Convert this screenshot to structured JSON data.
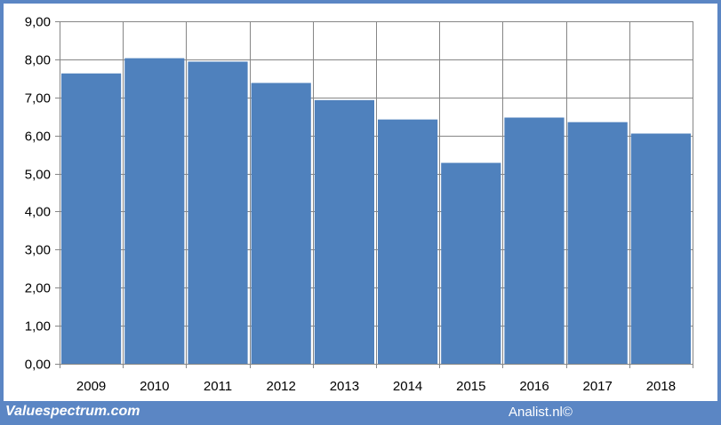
{
  "footer": {
    "left_text": "Valuespectrum.com",
    "right_text": "Analist.nl©"
  },
  "colors": {
    "bar": "#4f81bd",
    "frame": "#5b86c4",
    "grid": "#868686"
  },
  "chart_data": {
    "type": "bar",
    "categories": [
      "2009",
      "2010",
      "2011",
      "2012",
      "2013",
      "2014",
      "2015",
      "2016",
      "2017",
      "2018"
    ],
    "values": [
      7.63,
      8.03,
      7.94,
      7.38,
      6.93,
      6.42,
      5.28,
      6.47,
      6.35,
      6.05
    ],
    "ylim": [
      0,
      9
    ],
    "yticks": [
      0,
      1,
      2,
      3,
      4,
      5,
      6,
      7,
      8,
      9
    ],
    "ytick_labels": [
      "0,00",
      "1,00",
      "2,00",
      "3,00",
      "4,00",
      "5,00",
      "6,00",
      "7,00",
      "8,00",
      "9,00"
    ],
    "grid": true
  }
}
